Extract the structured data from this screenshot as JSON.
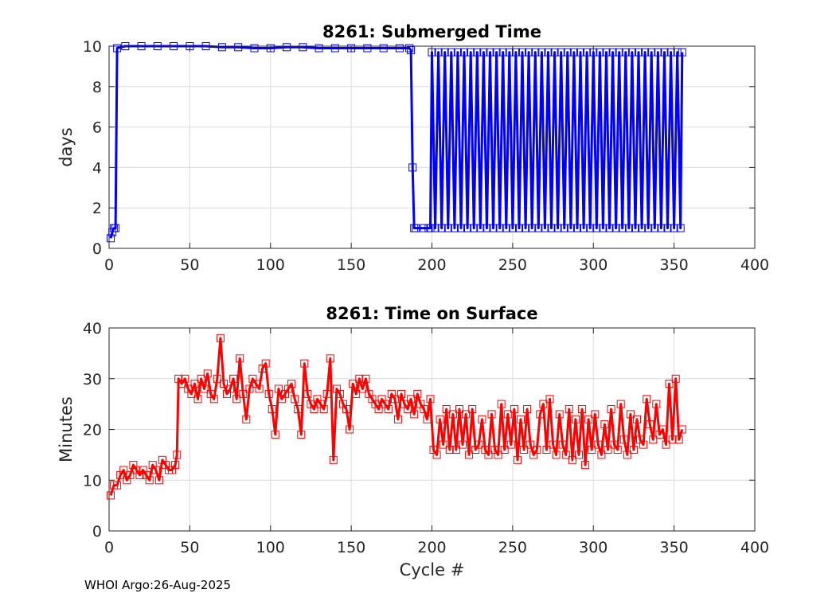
{
  "footer": "WHOI Argo:26-Aug-2025",
  "chart_data": [
    {
      "type": "line",
      "title": "8261: Submerged Time",
      "xlabel": "",
      "ylabel": "days",
      "xlim": [
        0,
        400
      ],
      "ylim": [
        0,
        10
      ],
      "xticks": [
        0,
        50,
        100,
        150,
        200,
        250,
        300,
        350,
        400
      ],
      "yticks": [
        0,
        2,
        4,
        6,
        8,
        10
      ],
      "grid": true,
      "marker": "square",
      "color": "#0000ff",
      "x": [
        1,
        2,
        3,
        4,
        5,
        10,
        20,
        30,
        40,
        50,
        60,
        70,
        80,
        90,
        100,
        110,
        120,
        130,
        140,
        150,
        160,
        170,
        180,
        186,
        187,
        188,
        189,
        190,
        195,
        198,
        199,
        200,
        202,
        204,
        206,
        208,
        210,
        212,
        214,
        216,
        218,
        220,
        222,
        224,
        226,
        228,
        230,
        232,
        234,
        236,
        238,
        240,
        242,
        244,
        246,
        248,
        250,
        252,
        254,
        256,
        258,
        260,
        262,
        264,
        266,
        268,
        270,
        272,
        274,
        276,
        278,
        280,
        282,
        284,
        286,
        288,
        290,
        292,
        294,
        296,
        298,
        300,
        302,
        304,
        306,
        308,
        310,
        312,
        314,
        316,
        318,
        320,
        322,
        324,
        326,
        328,
        330,
        332,
        334,
        336,
        338,
        340,
        342,
        344,
        346,
        348,
        350,
        352,
        354,
        355
      ],
      "y": [
        0.5,
        0.8,
        1.0,
        1.0,
        9.9,
        10.0,
        10.0,
        10.0,
        10.0,
        10.0,
        10.0,
        9.95,
        9.95,
        9.9,
        9.9,
        9.95,
        9.95,
        9.9,
        9.9,
        9.9,
        9.9,
        9.9,
        9.9,
        9.9,
        9.8,
        4.0,
        1.0,
        1.0,
        1.0,
        1.0,
        1.0,
        9.7,
        1.0,
        9.7,
        1.0,
        9.7,
        1.0,
        9.7,
        1.0,
        9.7,
        1.0,
        9.7,
        1.0,
        9.7,
        1.0,
        9.7,
        1.0,
        9.7,
        1.0,
        9.7,
        1.0,
        9.7,
        1.0,
        9.7,
        1.0,
        9.7,
        1.0,
        9.7,
        1.0,
        9.7,
        1.0,
        9.7,
        1.0,
        9.7,
        1.0,
        9.7,
        1.0,
        9.7,
        1.0,
        9.7,
        1.0,
        9.7,
        1.0,
        9.7,
        1.0,
        9.7,
        1.0,
        9.7,
        1.0,
        9.7,
        1.0,
        9.7,
        1.0,
        9.7,
        1.0,
        9.7,
        1.0,
        9.7,
        1.0,
        9.7,
        1.0,
        9.7,
        1.0,
        9.7,
        1.0,
        9.7,
        1.0,
        9.7,
        1.0,
        9.7,
        1.0,
        9.7,
        1.0,
        9.7,
        1.0,
        9.7,
        1.0,
        9.7,
        1.0,
        9.7
      ]
    },
    {
      "type": "line",
      "title": "8261: Time on Surface",
      "xlabel": "Cycle #",
      "ylabel": "Minutes",
      "xlim": [
        0,
        400
      ],
      "ylim": [
        0,
        40
      ],
      "xticks": [
        0,
        50,
        100,
        150,
        200,
        250,
        300,
        350,
        400
      ],
      "yticks": [
        0,
        10,
        20,
        30,
        40
      ],
      "grid": true,
      "marker": "square",
      "color": "#ff0000",
      "x": [
        1,
        3,
        5,
        7,
        9,
        11,
        13,
        15,
        17,
        19,
        21,
        23,
        25,
        27,
        29,
        31,
        33,
        35,
        37,
        39,
        41,
        42,
        43,
        45,
        47,
        49,
        51,
        53,
        55,
        57,
        59,
        61,
        63,
        65,
        67,
        69,
        71,
        73,
        75,
        77,
        79,
        81,
        83,
        85,
        87,
        89,
        91,
        93,
        95,
        97,
        99,
        101,
        103,
        105,
        107,
        109,
        111,
        113,
        115,
        117,
        119,
        121,
        123,
        125,
        127,
        129,
        131,
        133,
        135,
        137,
        139,
        141,
        143,
        145,
        147,
        149,
        151,
        153,
        155,
        157,
        159,
        161,
        163,
        165,
        167,
        169,
        171,
        173,
        175,
        177,
        179,
        181,
        183,
        185,
        187,
        189,
        191,
        193,
        195,
        197,
        199,
        201,
        203,
        205,
        207,
        209,
        211,
        213,
        215,
        217,
        219,
        221,
        223,
        225,
        227,
        229,
        231,
        233,
        235,
        237,
        239,
        241,
        243,
        245,
        247,
        249,
        251,
        253,
        255,
        257,
        259,
        261,
        263,
        265,
        267,
        269,
        271,
        273,
        275,
        277,
        279,
        281,
        283,
        285,
        287,
        289,
        291,
        293,
        295,
        297,
        299,
        301,
        303,
        305,
        307,
        309,
        311,
        313,
        315,
        317,
        319,
        321,
        323,
        325,
        327,
        329,
        331,
        333,
        335,
        337,
        339,
        341,
        343,
        345,
        347,
        349,
        351,
        353,
        355
      ],
      "y": [
        7,
        9,
        9,
        11,
        12,
        10,
        11,
        13,
        12,
        11,
        12,
        11,
        10,
        13,
        12,
        10,
        14,
        13,
        12,
        12,
        13,
        15,
        30,
        29,
        30,
        28,
        27,
        29,
        26,
        30,
        28,
        31,
        27,
        26,
        30,
        38,
        29,
        27,
        28,
        30,
        26,
        34,
        27,
        22,
        28,
        30,
        29,
        28,
        32,
        33,
        27,
        24,
        19,
        28,
        26,
        27,
        28,
        29,
        26,
        24,
        19,
        33,
        27,
        25,
        24,
        26,
        25,
        24,
        27,
        34,
        14,
        28,
        27,
        25,
        24,
        20,
        29,
        27,
        30,
        28,
        30,
        27,
        26,
        25,
        24,
        26,
        25,
        24,
        27,
        26,
        22,
        27,
        25,
        24,
        26,
        23,
        27,
        25,
        24,
        22,
        26,
        16,
        15,
        22,
        17,
        24,
        16,
        23,
        16,
        24,
        17,
        23,
        15,
        24,
        16,
        17,
        22,
        16,
        15,
        23,
        16,
        15,
        25,
        16,
        23,
        17,
        24,
        14,
        22,
        16,
        24,
        17,
        15,
        16,
        23,
        25,
        16,
        26,
        17,
        15,
        23,
        17,
        15,
        24,
        14,
        22,
        15,
        24,
        13,
        22,
        16,
        23,
        17,
        15,
        21,
        16,
        24,
        17,
        16,
        25,
        18,
        15,
        23,
        16,
        22,
        18,
        17,
        26,
        21,
        18,
        25,
        19,
        20,
        17,
        29,
        18,
        30,
        18,
        20
      ]
    }
  ]
}
